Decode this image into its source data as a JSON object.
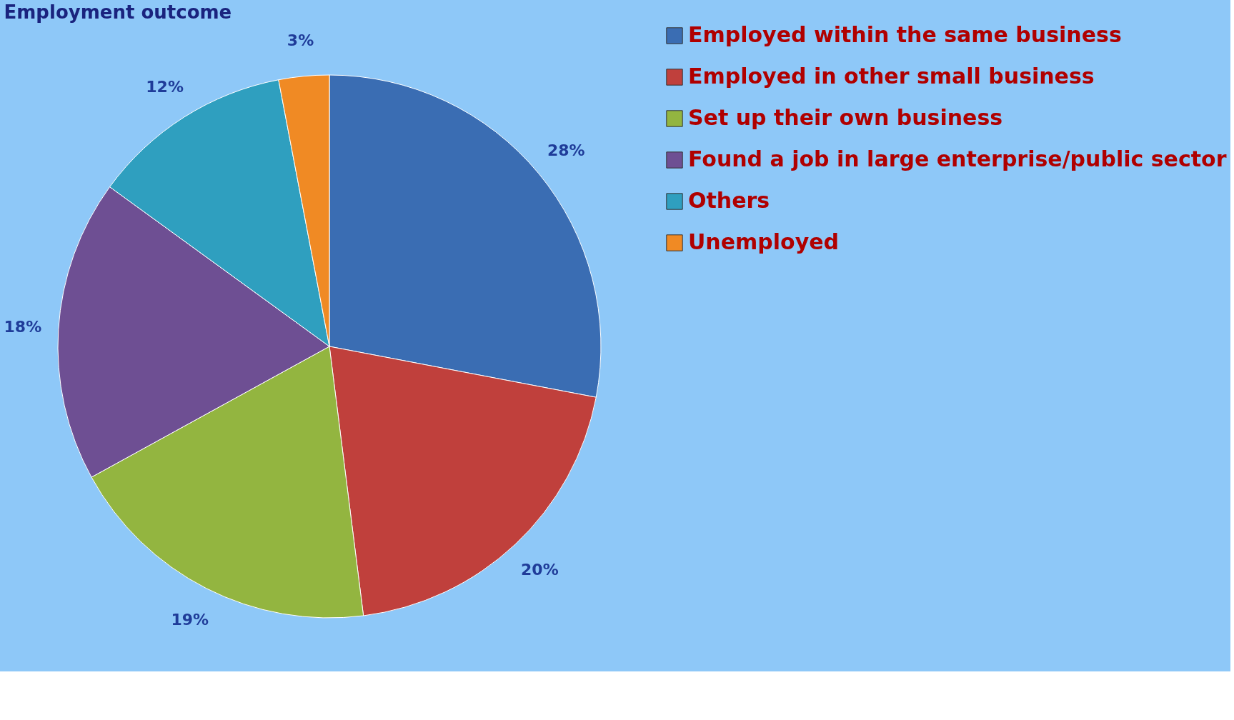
{
  "chart_data": {
    "type": "pie",
    "title": "Employment outcome",
    "categories": [
      "Employed within the same business",
      "Employed in other small business",
      "Set up their own business",
      "Found a job in large enterprise/public sector",
      "Others",
      "Unemployed"
    ],
    "values": [
      28,
      20,
      19,
      18,
      12,
      3
    ],
    "colors": [
      "#3a6db3",
      "#c0403c",
      "#93b540",
      "#6e4f93",
      "#2f9fbf",
      "#f08a24"
    ],
    "value_labels": [
      "28%",
      "20%",
      "19%",
      "18%",
      "12%",
      "3%"
    ],
    "legend": "right"
  }
}
